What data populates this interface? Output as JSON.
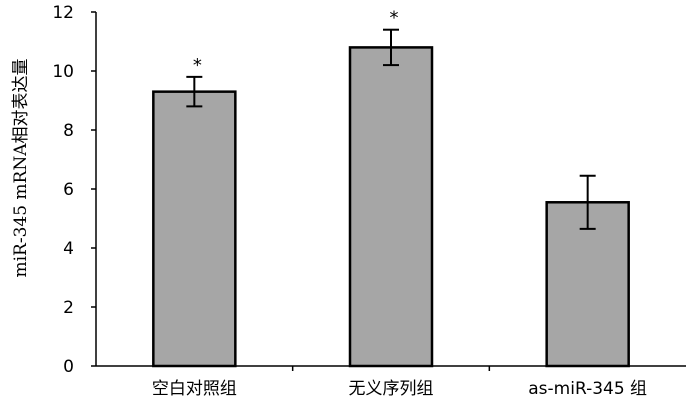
{
  "chart_data": {
    "type": "bar",
    "categories": [
      "空白对照组",
      "无义序列组",
      "as-miR-345 组"
    ],
    "values": [
      9.3,
      10.8,
      5.55
    ],
    "errors": [
      0.5,
      0.6,
      0.9
    ],
    "significance": [
      "*",
      "*",
      ""
    ],
    "title": "",
    "xlabel": "",
    "ylabel": "miR-345 mRNA相对表达量",
    "ylim": [
      0,
      12
    ],
    "yticks": [
      0,
      2,
      4,
      6,
      8,
      10,
      12
    ],
    "grid": false,
    "legend": false,
    "colors": {
      "bar_fill": "#a6a6a6",
      "bar_stroke": "#000000",
      "axis": "#000000"
    }
  }
}
